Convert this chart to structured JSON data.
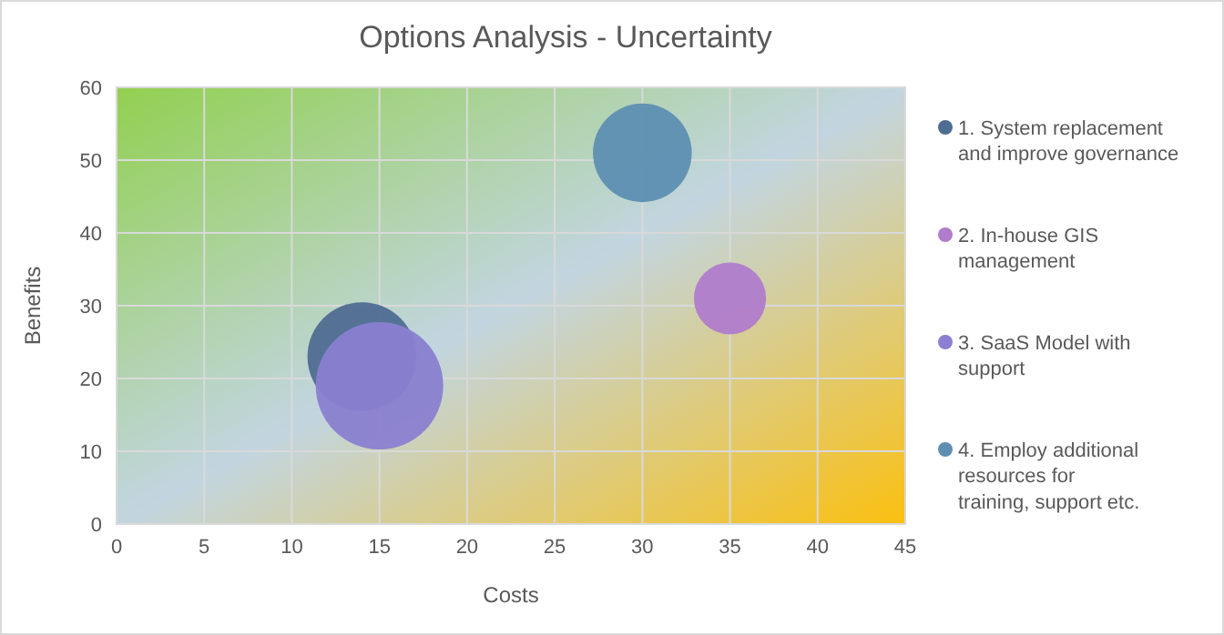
{
  "chart_data": {
    "type": "bubble",
    "title": "Options Analysis - Uncertainty",
    "xlabel": "Costs",
    "ylabel": "Benefits",
    "xlim": [
      0,
      45
    ],
    "xticks": [
      0,
      5,
      10,
      15,
      20,
      25,
      30,
      35,
      40,
      45
    ],
    "ylim": [
      0,
      60
    ],
    "yticks": [
      0,
      10,
      20,
      30,
      40,
      50,
      60
    ],
    "grid": true,
    "legend": "right",
    "series": [
      {
        "name": "1. System replacement and improve governance",
        "color": "#4f6d92",
        "x": [
          14
        ],
        "values": [
          23
        ],
        "sizes": [
          0.73
        ]
      },
      {
        "name": "2. In-house GIS management",
        "color": "#b07ccc",
        "x": [
          35
        ],
        "values": [
          31
        ],
        "sizes": [
          0.32
        ]
      },
      {
        "name": "3. SaaS Model with support",
        "color": "#8a7fd0",
        "x": [
          15
        ],
        "values": [
          19
        ],
        "sizes": [
          1
        ]
      },
      {
        "name": "4. Employ additional resources for training, support etc.",
        "color": "#5e8fb2",
        "x": [
          30
        ],
        "values": [
          51
        ],
        "sizes": [
          0.6
        ]
      }
    ]
  }
}
